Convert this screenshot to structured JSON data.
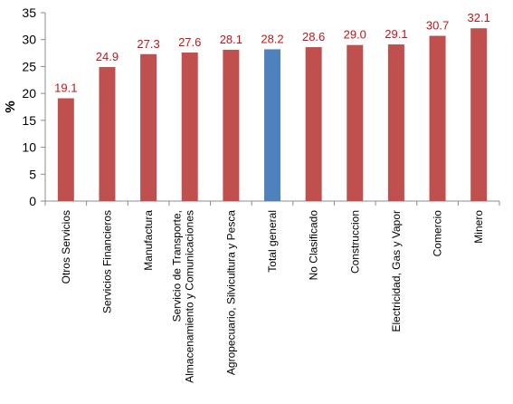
{
  "chart_data": {
    "type": "bar",
    "title": "",
    "xlabel": "",
    "ylabel": "%",
    "ylim": [
      0,
      35
    ],
    "yticks": [
      0,
      5,
      10,
      15,
      20,
      25,
      30,
      35
    ],
    "grid": false,
    "legend": "none",
    "categories": [
      [
        "Otros Servicios"
      ],
      [
        "Servicios Financieros"
      ],
      [
        "Manufactura"
      ],
      [
        "Servicio de Transporte,",
        "Almacenamiento y Comunicaciones"
      ],
      [
        "Agropecuario, Silvicultura y Pesca"
      ],
      [
        "Total general"
      ],
      [
        "No Clasificado"
      ],
      [
        "Construccion"
      ],
      [
        "Electricidad, Gas y Vapor"
      ],
      [
        "Comercio"
      ],
      [
        "Minero"
      ]
    ],
    "values": [
      19.1,
      24.9,
      27.3,
      27.6,
      28.1,
      28.2,
      28.6,
      29.0,
      29.1,
      30.7,
      32.1
    ],
    "data_labels": [
      "19.1",
      "24.9",
      "27.3",
      "27.6",
      "28.1",
      "28.2",
      "28.6",
      "29.0",
      "29.1",
      "30.7",
      "32.1"
    ],
    "bar_color": "#c0504d",
    "highlight_color": "#4f81bd",
    "highlight_index": 5,
    "label_color": "#c0161c"
  }
}
